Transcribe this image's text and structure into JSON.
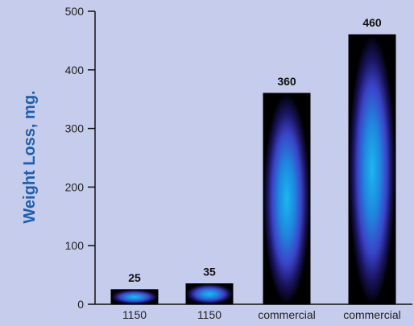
{
  "chart_data": {
    "type": "bar",
    "title": "",
    "xlabel": "",
    "ylabel": "Weight Loss, mg.",
    "ylim": [
      0,
      500
    ],
    "yticks": [
      0,
      100,
      200,
      300,
      400,
      500
    ],
    "categories": [
      "1150",
      "1150",
      "commercial",
      "commercial"
    ],
    "values": [
      25,
      35,
      360,
      460
    ],
    "data_labels": [
      "25",
      "35",
      "360",
      "460"
    ],
    "grid": false,
    "legend": "none"
  },
  "colors": {
    "background": "#c6ccec",
    "bar_edge": "#000000",
    "bar_glow_center": "#1ab8f0",
    "bar_glow_mid": "#3a44c8",
    "ylabel": "#1f5fb0",
    "axis": "#111111"
  }
}
